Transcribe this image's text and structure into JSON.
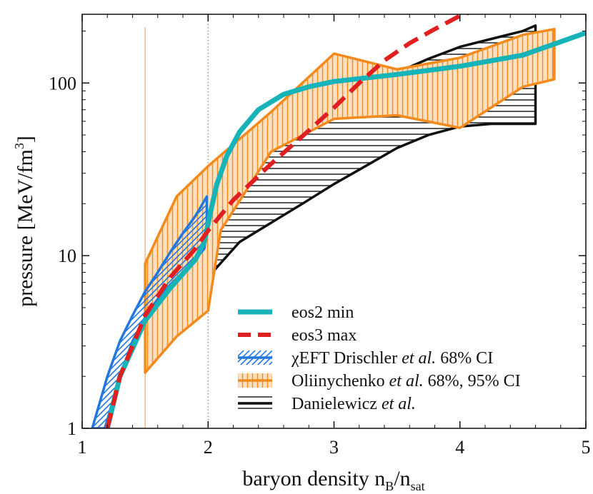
{
  "chart_data": {
    "type": "line",
    "xlabel_main": "baryon density n",
    "xlabel_sub1": "B",
    "xlabel_mid": "/n",
    "xlabel_sub2": "sat",
    "ylabel_main": "pressure [MeV/fm",
    "ylabel_sup": "3",
    "ylabel_end": "]",
    "xlim": [
      1,
      5
    ],
    "ylim": [
      1,
      250
    ],
    "yscale": "log",
    "x_ticks": [
      1,
      2,
      3,
      4,
      5
    ],
    "x_tick_labels": [
      "1",
      "2",
      "3",
      "4",
      "5"
    ],
    "y_ticks": [
      1,
      10,
      100
    ],
    "y_tick_labels": [
      "1",
      "10",
      "100"
    ],
    "vertical_reference_lines": [
      {
        "x": 1.5,
        "color": "#f2a860",
        "style": "solid"
      },
      {
        "x": 2.0,
        "color": "#666666",
        "style": "dotted"
      }
    ],
    "series": [
      {
        "name": "eos2 min",
        "kind": "line",
        "color": "#16b3b8",
        "points": [
          [
            1.2,
            1
          ],
          [
            1.3,
            2
          ],
          [
            1.5,
            4.2
          ],
          [
            1.7,
            6.5
          ],
          [
            1.9,
            9.5
          ],
          [
            1.97,
            12
          ],
          [
            2.02,
            18
          ],
          [
            2.07,
            26
          ],
          [
            2.15,
            38
          ],
          [
            2.25,
            52
          ],
          [
            2.4,
            70
          ],
          [
            2.6,
            86
          ],
          [
            2.8,
            95
          ],
          [
            3.0,
            102
          ],
          [
            3.5,
            112
          ],
          [
            4.0,
            125
          ],
          [
            4.5,
            145
          ],
          [
            5.0,
            195
          ]
        ]
      },
      {
        "name": "eos3 max",
        "kind": "dashed-line",
        "color": "#e02020",
        "points": [
          [
            1.2,
            1
          ],
          [
            1.3,
            2
          ],
          [
            1.5,
            4.5
          ],
          [
            1.7,
            7.5
          ],
          [
            1.9,
            11
          ],
          [
            2.0,
            14
          ],
          [
            2.2,
            21
          ],
          [
            2.5,
            34
          ],
          [
            2.8,
            53
          ],
          [
            3.0,
            72
          ],
          [
            3.2,
            100
          ],
          [
            3.4,
            135
          ],
          [
            3.6,
            170
          ],
          [
            3.8,
            205
          ],
          [
            4.0,
            245
          ],
          [
            4.1,
            260
          ]
        ]
      },
      {
        "name": "χEFT Drischler et al. 68% CI",
        "kind": "band",
        "color": "#2277dd",
        "upper": [
          [
            1.08,
            1
          ],
          [
            1.2,
            2
          ],
          [
            1.3,
            3.2
          ],
          [
            1.4,
            4.5
          ],
          [
            1.5,
            6.2
          ],
          [
            1.6,
            8
          ],
          [
            1.7,
            10.5
          ],
          [
            1.8,
            13.5
          ],
          [
            1.9,
            17
          ],
          [
            1.99,
            22
          ]
        ],
        "lower": [
          [
            1.18,
            1
          ],
          [
            1.3,
            2
          ],
          [
            1.4,
            3.2
          ],
          [
            1.5,
            4.4
          ],
          [
            1.6,
            5.6
          ],
          [
            1.7,
            6.8
          ],
          [
            1.8,
            8
          ],
          [
            1.9,
            9.5
          ],
          [
            1.97,
            11
          ],
          [
            1.99,
            14
          ]
        ]
      },
      {
        "name": "Oliinychenko et al. 68%, 95% CI",
        "kind": "band",
        "color": "#f28a1c",
        "upper": [
          [
            1.5,
            9
          ],
          [
            1.75,
            22
          ],
          [
            2.0,
            33
          ],
          [
            2.5,
            68
          ],
          [
            3.0,
            148
          ],
          [
            3.5,
            120
          ],
          [
            4.0,
            140
          ],
          [
            4.5,
            190
          ],
          [
            4.75,
            205
          ]
        ],
        "lower": [
          [
            1.5,
            2.1
          ],
          [
            1.75,
            3.4
          ],
          [
            2.0,
            4.8
          ],
          [
            2.1,
            14
          ],
          [
            2.5,
            40
          ],
          [
            3.0,
            62
          ],
          [
            3.5,
            65
          ],
          [
            4.0,
            55
          ],
          [
            4.5,
            95
          ],
          [
            4.75,
            105
          ]
        ]
      },
      {
        "name": "Danielewicz et al.",
        "kind": "band",
        "color": "#111111",
        "upper": [
          [
            2.0,
            12
          ],
          [
            2.25,
            28
          ],
          [
            2.5,
            42
          ],
          [
            2.75,
            58
          ],
          [
            3.0,
            73
          ],
          [
            3.25,
            90
          ],
          [
            3.5,
            115
          ],
          [
            3.75,
            138
          ],
          [
            4.0,
            162
          ],
          [
            4.25,
            180
          ],
          [
            4.5,
            200
          ],
          [
            4.6,
            215
          ]
        ],
        "lower": [
          [
            2.0,
            7.5
          ],
          [
            2.25,
            12
          ],
          [
            2.5,
            15.5
          ],
          [
            2.75,
            20
          ],
          [
            3.0,
            26
          ],
          [
            3.25,
            33
          ],
          [
            3.5,
            42
          ],
          [
            3.75,
            50
          ],
          [
            4.0,
            56
          ],
          [
            4.25,
            58
          ],
          [
            4.5,
            58
          ],
          [
            4.6,
            58
          ]
        ]
      }
    ],
    "legend": [
      {
        "label": "eos2 min",
        "italic_part": "",
        "suffix": ""
      },
      {
        "label": "eos3 max",
        "italic_part": "",
        "suffix": ""
      },
      {
        "label": "χEFT Drischler ",
        "italic_part": "et al.",
        "suffix": " 68% CI"
      },
      {
        "label": "Oliinychenko ",
        "italic_part": "et al.",
        "suffix": " 68%, 95% CI"
      },
      {
        "label": "Danielewicz ",
        "italic_part": "et al.",
        "suffix": ""
      }
    ],
    "legend_position": "bottom-right"
  }
}
